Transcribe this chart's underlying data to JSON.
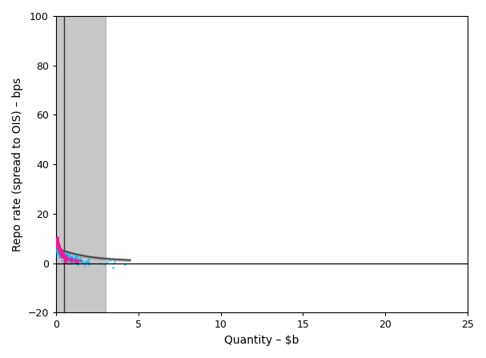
{
  "title": "",
  "xlabel": "Quantity – $b",
  "ylabel": "Repo rate (spread to OIS) – bps",
  "xlim": [
    0,
    25
  ],
  "ylim": [
    -20,
    100
  ],
  "xticks": [
    0,
    5,
    10,
    15,
    20,
    25
  ],
  "yticks": [
    -20,
    0,
    20,
    40,
    60,
    80,
    100
  ],
  "supply_avg": 0.5,
  "supply_min": 0.0,
  "supply_max": 3.0,
  "supply_color": "#333333",
  "supply_shade_color": "#aaaaaa",
  "supply_shade_alpha": 0.65,
  "demand_color": "#444444",
  "demand_shade_color": "#888888",
  "demand_shade_alpha": 0.4,
  "filled_color": "#FF1493",
  "unfilled_color": "#00BFFF",
  "hline_y": 0,
  "hline_color": "#000000",
  "background_color": "#ffffff",
  "tick_labelsize": 9,
  "label_fontsize": 10
}
